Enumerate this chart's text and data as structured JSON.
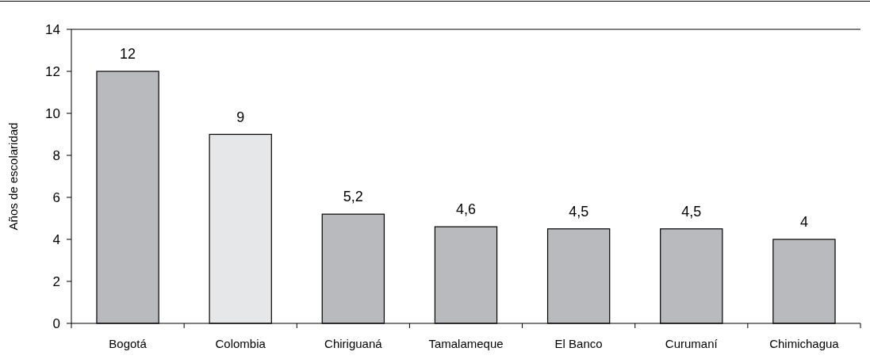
{
  "chart_data": {
    "type": "bar",
    "ylabel": "Años de escolaridad",
    "categories": [
      "Bogotá",
      "Colombia",
      "Chiriguaná",
      "Tamalameque",
      "El Banco",
      "Curumaní",
      "Chimichagua"
    ],
    "values": [
      12,
      9,
      5.2,
      4.6,
      4.5,
      4.5,
      4
    ],
    "colors": [
      "#b9babd",
      "#e6e7e8",
      "#b9babd",
      "#b9babd",
      "#b9babd",
      "#b9babd",
      "#b9babd"
    ],
    "value_labels": [
      "12",
      "9",
      "5,2",
      "4,6",
      "4,5",
      "4,5",
      "4"
    ],
    "ylim": [
      0,
      14
    ],
    "yticks": [
      0,
      2,
      4,
      6,
      8,
      10,
      12,
      14
    ],
    "grid": false
  }
}
